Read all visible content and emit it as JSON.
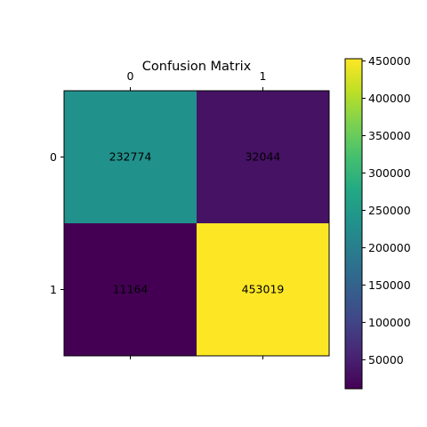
{
  "chart_data": {
    "type": "heatmap",
    "title": "Confusion Matrix",
    "x_tick_labels": [
      "0",
      "1"
    ],
    "y_tick_labels": [
      "0",
      "1"
    ],
    "x_ticks_position": "top",
    "matrix": [
      [
        232774,
        32044
      ],
      [
        11164,
        453019
      ]
    ],
    "cell_labels": [
      [
        "232774",
        "32044"
      ],
      [
        "11164",
        "453019"
      ]
    ],
    "colormap": "viridis",
    "color_range": [
      11164,
      453019
    ],
    "colorbar": {
      "placement": "right",
      "ticks": [
        50000,
        100000,
        150000,
        200000,
        250000,
        300000,
        350000,
        400000,
        450000
      ],
      "tick_labels": [
        "50000",
        "100000",
        "150000",
        "200000",
        "250000",
        "300000",
        "350000",
        "400000",
        "450000"
      ]
    },
    "grid": false
  }
}
